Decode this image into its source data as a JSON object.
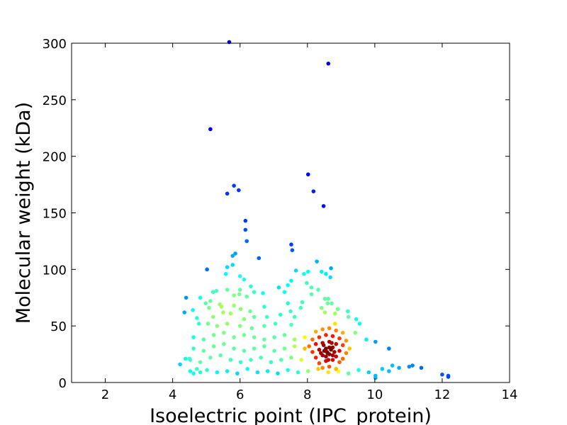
{
  "chart_data": {
    "type": "scatter",
    "title": "",
    "xlabel": "Isoelectric point (IPC_protein)",
    "ylabel": "Molecular weight (kDa)",
    "xlim": [
      1,
      14
    ],
    "ylim": [
      0,
      300
    ],
    "xticks": [
      2,
      4,
      6,
      8,
      10,
      12,
      14
    ],
    "yticks": [
      0,
      50,
      100,
      150,
      200,
      250,
      300
    ],
    "grid": false,
    "legend": "none",
    "colormap": "jet (point density)",
    "points": [
      [
        5.68,
        301
      ],
      [
        8.62,
        282
      ],
      [
        5.12,
        224
      ],
      [
        8.02,
        184
      ],
      [
        5.82,
        174
      ],
      [
        8.18,
        169
      ],
      [
        5.96,
        170
      ],
      [
        5.62,
        167
      ],
      [
        8.48,
        156
      ],
      [
        6.16,
        143
      ],
      [
        6.16,
        135
      ],
      [
        6.2,
        125
      ],
      [
        7.52,
        122
      ],
      [
        7.55,
        117
      ],
      [
        5.86,
        114
      ],
      [
        5.78,
        112
      ],
      [
        6.56,
        110
      ],
      [
        8.28,
        107
      ],
      [
        5.78,
        104
      ],
      [
        5.62,
        102
      ],
      [
        5.02,
        100
      ],
      [
        8.7,
        101
      ],
      [
        7.66,
        99
      ],
      [
        8.42,
        98
      ],
      [
        8.55,
        96
      ],
      [
        8.68,
        93
      ],
      [
        5.58,
        96
      ],
      [
        6.0,
        94
      ],
      [
        7.9,
        96
      ],
      [
        8.02,
        98
      ],
      [
        6.12,
        91
      ],
      [
        7.52,
        90
      ],
      [
        7.98,
        88
      ],
      [
        8.12,
        84
      ],
      [
        7.15,
        84
      ],
      [
        7.42,
        86
      ],
      [
        6.32,
        85
      ],
      [
        8.32,
        82
      ],
      [
        6.0,
        82
      ],
      [
        5.62,
        82
      ],
      [
        5.2,
        80
      ],
      [
        5.3,
        81
      ],
      [
        4.4,
        75
      ],
      [
        4.82,
        75
      ],
      [
        6.42,
        80
      ],
      [
        6.68,
        79
      ],
      [
        7.32,
        80
      ],
      [
        8.12,
        78
      ],
      [
        5.82,
        77
      ],
      [
        5.98,
        78
      ],
      [
        6.2,
        76
      ],
      [
        8.52,
        74
      ],
      [
        8.62,
        74
      ],
      [
        4.98,
        70
      ],
      [
        5.12,
        72
      ],
      [
        5.4,
        69
      ],
      [
        7.42,
        70
      ],
      [
        7.85,
        71
      ],
      [
        8.6,
        70
      ],
      [
        8.72,
        70
      ],
      [
        4.6,
        64
      ],
      [
        5.08,
        66
      ],
      [
        5.45,
        67
      ],
      [
        5.82,
        68
      ],
      [
        6.02,
        65
      ],
      [
        6.3,
        63
      ],
      [
        6.72,
        67
      ],
      [
        7.5,
        63
      ],
      [
        7.8,
        66
      ],
      [
        8.42,
        66
      ],
      [
        8.9,
        65
      ],
      [
        9.2,
        63
      ],
      [
        4.35,
        62
      ],
      [
        4.72,
        57
      ],
      [
        5.2,
        58
      ],
      [
        5.5,
        62
      ],
      [
        5.72,
        61
      ],
      [
        6.12,
        56
      ],
      [
        6.42,
        58
      ],
      [
        6.8,
        58
      ],
      [
        7.2,
        60
      ],
      [
        7.62,
        58
      ],
      [
        8.52,
        62
      ],
      [
        8.82,
        61
      ],
      [
        9.22,
        58
      ],
      [
        9.45,
        56
      ],
      [
        4.78,
        52
      ],
      [
        5.05,
        52
      ],
      [
        5.32,
        50
      ],
      [
        5.62,
        52
      ],
      [
        6.0,
        50
      ],
      [
        6.35,
        48
      ],
      [
        6.72,
        50
      ],
      [
        7.05,
        52
      ],
      [
        7.52,
        51
      ],
      [
        8.82,
        52
      ],
      [
        9.55,
        52
      ],
      [
        9.75,
        38
      ],
      [
        10.02,
        36
      ],
      [
        10.42,
        30
      ],
      [
        9.42,
        44
      ],
      [
        4.62,
        40
      ],
      [
        4.92,
        38
      ],
      [
        5.22,
        42
      ],
      [
        5.52,
        44
      ],
      [
        5.82,
        40
      ],
      [
        6.12,
        42
      ],
      [
        6.42,
        40
      ],
      [
        6.72,
        38
      ],
      [
        7.02,
        40
      ],
      [
        7.32,
        42
      ],
      [
        7.62,
        38
      ],
      [
        7.92,
        40
      ],
      [
        4.62,
        30
      ],
      [
        4.92,
        28
      ],
      [
        5.22,
        32
      ],
      [
        5.52,
        34
      ],
      [
        5.82,
        30
      ],
      [
        6.12,
        28
      ],
      [
        6.42,
        30
      ],
      [
        6.72,
        32
      ],
      [
        7.02,
        28
      ],
      [
        7.32,
        30
      ],
      [
        7.62,
        32
      ],
      [
        7.92,
        30
      ],
      [
        4.52,
        20
      ],
      [
        4.82,
        18
      ],
      [
        5.12,
        22
      ],
      [
        5.42,
        24
      ],
      [
        5.72,
        20
      ],
      [
        6.02,
        18
      ],
      [
        6.32,
        20
      ],
      [
        6.62,
        22
      ],
      [
        6.92,
        18
      ],
      [
        7.22,
        20
      ],
      [
        7.52,
        22
      ],
      [
        7.82,
        20
      ],
      [
        4.22,
        16
      ],
      [
        4.38,
        21
      ],
      [
        4.5,
        21
      ],
      [
        4.52,
        10
      ],
      [
        4.62,
        8
      ],
      [
        4.72,
        12
      ],
      [
        4.82,
        9
      ],
      [
        5.02,
        11
      ],
      [
        5.32,
        9
      ],
      [
        5.62,
        10
      ],
      [
        5.92,
        8
      ],
      [
        6.22,
        12
      ],
      [
        6.52,
        9
      ],
      [
        6.82,
        10
      ],
      [
        7.12,
        8
      ],
      [
        7.42,
        11
      ],
      [
        7.72,
        9
      ],
      [
        8.02,
        10
      ],
      [
        8.32,
        12
      ],
      [
        8.62,
        9
      ],
      [
        8.92,
        10
      ],
      [
        9.22,
        8
      ],
      [
        9.52,
        11
      ],
      [
        9.82,
        9
      ],
      [
        10.02,
        6
      ],
      [
        10.02,
        4
      ],
      [
        10.22,
        12
      ],
      [
        10.42,
        10
      ],
      [
        10.52,
        15
      ],
      [
        10.72,
        13
      ],
      [
        11.02,
        14
      ],
      [
        11.12,
        15
      ],
      [
        11.38,
        13
      ],
      [
        12.0,
        7
      ],
      [
        12.18,
        6
      ],
      [
        12.18,
        5
      ],
      [
        8.25,
        45
      ],
      [
        8.45,
        47
      ],
      [
        8.65,
        48
      ],
      [
        8.85,
        46
      ],
      [
        9.05,
        44
      ],
      [
        8.15,
        38
      ],
      [
        8.35,
        40
      ],
      [
        8.55,
        42
      ],
      [
        8.75,
        41
      ],
      [
        8.95,
        39
      ],
      [
        9.15,
        37
      ],
      [
        8.05,
        32
      ],
      [
        8.25,
        34
      ],
      [
        8.45,
        35
      ],
      [
        8.65,
        36
      ],
      [
        8.85,
        34
      ],
      [
        9.05,
        33
      ],
      [
        9.25,
        30
      ],
      [
        8.15,
        27
      ],
      [
        8.35,
        29
      ],
      [
        8.55,
        30
      ],
      [
        8.75,
        31
      ],
      [
        8.95,
        28
      ],
      [
        9.15,
        26
      ],
      [
        8.25,
        22
      ],
      [
        8.45,
        24
      ],
      [
        8.65,
        25
      ],
      [
        8.85,
        23
      ],
      [
        9.05,
        21
      ],
      [
        8.35,
        17
      ],
      [
        8.55,
        19
      ],
      [
        8.75,
        20
      ],
      [
        8.95,
        18
      ],
      [
        8.45,
        13
      ],
      [
        8.65,
        14
      ],
      [
        8.85,
        12
      ],
      [
        8.5,
        28
      ],
      [
        8.6,
        26
      ],
      [
        8.7,
        29
      ],
      [
        8.55,
        23
      ],
      [
        8.65,
        31
      ],
      [
        8.75,
        24
      ],
      [
        8.4,
        26
      ],
      [
        8.8,
        27
      ],
      [
        8.62,
        20
      ],
      [
        8.48,
        33
      ],
      [
        8.72,
        35
      ],
      [
        8.58,
        27
      ]
    ]
  }
}
